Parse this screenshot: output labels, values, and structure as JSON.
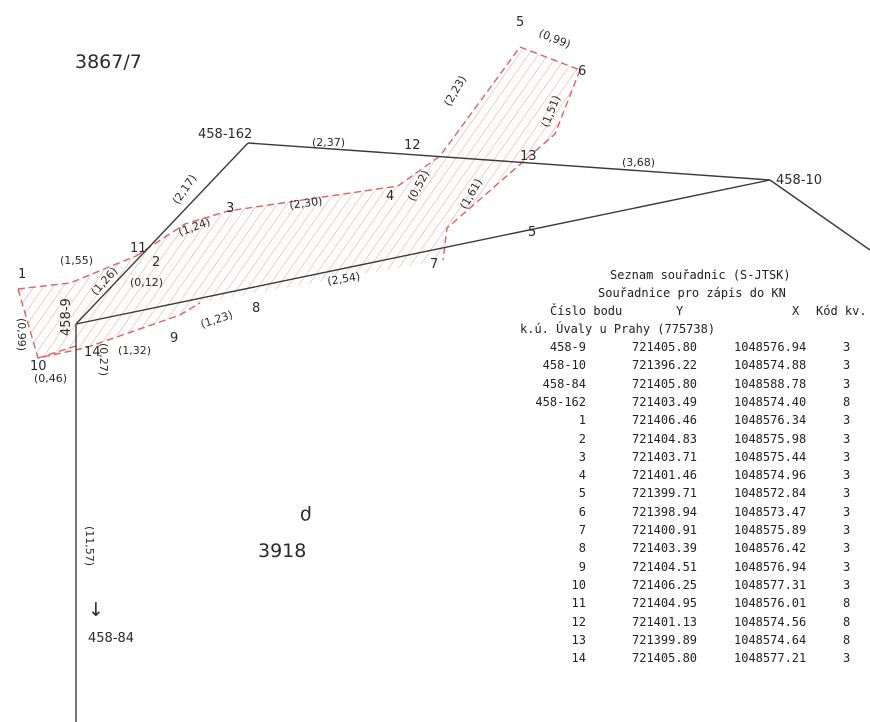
{
  "parcels": {
    "north": "3867/7",
    "south": "3918",
    "south_symbol": "ρ"
  },
  "points": [
    {
      "id": "p458-162",
      "label": "458-162"
    },
    {
      "id": "p458-10",
      "label": "458-10"
    },
    {
      "id": "p458-9",
      "label": "458-9"
    },
    {
      "id": "p458-84",
      "label": "458-84"
    },
    {
      "id": "p1",
      "label": "1"
    },
    {
      "id": "p2",
      "label": "2"
    },
    {
      "id": "p3",
      "label": "3"
    },
    {
      "id": "p4",
      "label": "4"
    },
    {
      "id": "p5",
      "label": "5"
    },
    {
      "id": "p6",
      "label": "6"
    },
    {
      "id": "p7",
      "label": "7"
    },
    {
      "id": "p8",
      "label": "8"
    },
    {
      "id": "p9",
      "label": "9"
    },
    {
      "id": "p10",
      "label": "10"
    },
    {
      "id": "p11",
      "label": "11"
    },
    {
      "id": "p12",
      "label": "12"
    },
    {
      "id": "p13",
      "label": "13"
    },
    {
      "id": "p14",
      "label": "14"
    },
    {
      "id": "side5",
      "label": "5"
    }
  ],
  "dimensions": [
    "(2,37)",
    "(3,68)",
    "(2,17)",
    "(2,30)",
    "(1,24)",
    "(0,52)",
    "(2,23)",
    "(0,99)",
    "(1,51)",
    "(1,61)",
    "(1,55)",
    "(1,26)",
    "(0,12)",
    "(2,54)",
    "(1,23)",
    "(1,32)",
    "(0,27)",
    "(0,99)",
    "(0,46)",
    "(11,57)"
  ],
  "arrow": "↓",
  "table": {
    "title1": "Seznam souřadnic (S-JTSK)",
    "title2": "Souřadnice pro zápis do KN",
    "header": {
      "c1": "Číslo bodu",
      "c2": "Y",
      "c3": "X",
      "c4": "Kód kv."
    },
    "cadastre": "k.ú. Úvaly u Prahy (775738)",
    "rows": [
      {
        "id": "458-9",
        "y": "721405.80",
        "x": "1048576.94",
        "k": "3"
      },
      {
        "id": "458-10",
        "y": "721396.22",
        "x": "1048574.88",
        "k": "3"
      },
      {
        "id": "458-84",
        "y": "721405.80",
        "x": "1048588.78",
        "k": "3"
      },
      {
        "id": "458-162",
        "y": "721403.49",
        "x": "1048574.40",
        "k": "8"
      },
      {
        "id": "1",
        "y": "721406.46",
        "x": "1048576.34",
        "k": "3"
      },
      {
        "id": "2",
        "y": "721404.83",
        "x": "1048575.98",
        "k": "3"
      },
      {
        "id": "3",
        "y": "721403.71",
        "x": "1048575.44",
        "k": "3"
      },
      {
        "id": "4",
        "y": "721401.46",
        "x": "1048574.96",
        "k": "3"
      },
      {
        "id": "5",
        "y": "721399.71",
        "x": "1048572.84",
        "k": "3"
      },
      {
        "id": "6",
        "y": "721398.94",
        "x": "1048573.47",
        "k": "3"
      },
      {
        "id": "7",
        "y": "721400.91",
        "x": "1048575.89",
        "k": "3"
      },
      {
        "id": "8",
        "y": "721403.39",
        "x": "1048576.42",
        "k": "3"
      },
      {
        "id": "9",
        "y": "721404.51",
        "x": "1048576.94",
        "k": "3"
      },
      {
        "id": "10",
        "y": "721406.25",
        "x": "1048577.31",
        "k": "3"
      },
      {
        "id": "11",
        "y": "721404.95",
        "x": "1048576.01",
        "k": "8"
      },
      {
        "id": "12",
        "y": "721401.13",
        "x": "1048574.56",
        "k": "8"
      },
      {
        "id": "13",
        "y": "721399.89",
        "x": "1048574.64",
        "k": "8"
      },
      {
        "id": "14",
        "y": "721405.80",
        "x": "1048577.21",
        "k": "3"
      }
    ]
  }
}
